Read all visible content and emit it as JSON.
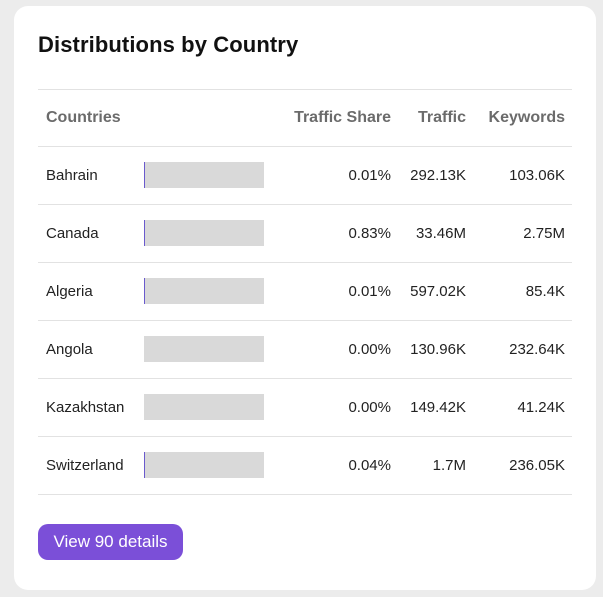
{
  "card": {
    "title": "Distributions by Country"
  },
  "table": {
    "columns": {
      "countries": "Countries",
      "traffic_share": "Traffic Share",
      "traffic": "Traffic",
      "keywords": "Keywords"
    },
    "rows": [
      {
        "country": "Bahrain",
        "share_fraction": 0.0001,
        "traffic_share": "0.01%",
        "traffic": "292.13K",
        "keywords": "103.06K"
      },
      {
        "country": "Canada",
        "share_fraction": 0.0083,
        "traffic_share": "0.83%",
        "traffic": "33.46M",
        "keywords": "2.75M"
      },
      {
        "country": "Algeria",
        "share_fraction": 0.0001,
        "traffic_share": "0.01%",
        "traffic": "597.02K",
        "keywords": "85.4K"
      },
      {
        "country": "Angola",
        "share_fraction": 0.0,
        "traffic_share": "0.00%",
        "traffic": "130.96K",
        "keywords": "232.64K"
      },
      {
        "country": "Kazakhstan",
        "share_fraction": 0.0,
        "traffic_share": "0.00%",
        "traffic": "149.42K",
        "keywords": "41.24K"
      },
      {
        "country": "Switzerland",
        "share_fraction": 0.0004,
        "traffic_share": "0.04%",
        "traffic": "1.7M",
        "keywords": "236.05K"
      }
    ]
  },
  "footer": {
    "button_label": "View 90 details"
  },
  "colors": {
    "accent": "#7b4fd8",
    "bar_fill": "#6a5acd",
    "bar_track": "#d9d9d9"
  }
}
